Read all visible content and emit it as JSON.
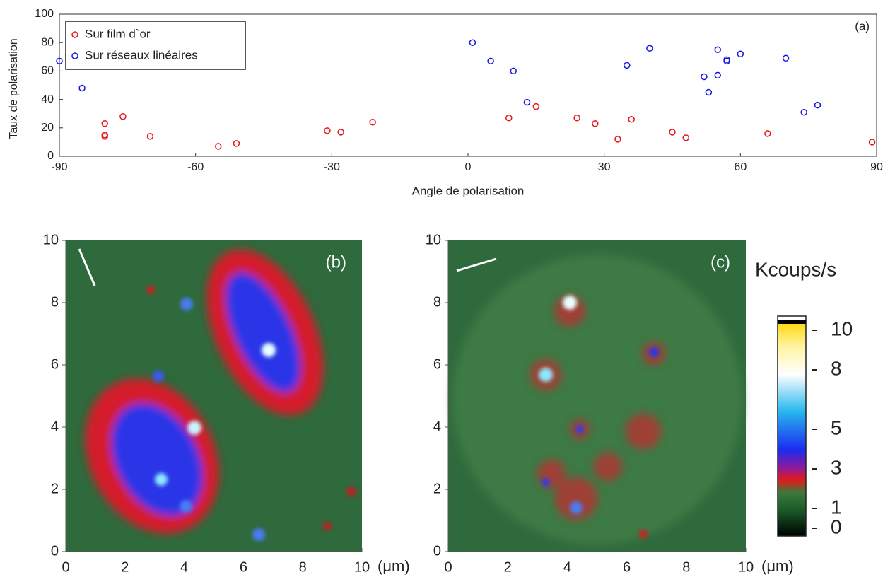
{
  "chart_data": [
    {
      "type": "scatter",
      "annotation": "(a)",
      "xlabel": "Angle de polarisation",
      "ylabel": "Taux de polarisation",
      "xlim": [
        -90,
        90
      ],
      "xticks": [
        -90,
        -60,
        -30,
        0,
        30,
        60,
        90
      ],
      "ylim": [
        0,
        100
      ],
      "yticks": [
        0,
        20,
        40,
        60,
        80,
        100
      ],
      "legend": "upper left",
      "series": [
        {
          "name": "Sur film d`or",
          "color": "#e8141a",
          "x": [
            -80,
            -80,
            -80,
            -76,
            -70,
            -55,
            -51,
            -31,
            -28,
            -21,
            9,
            15,
            24,
            28,
            33,
            36,
            45,
            48,
            66,
            89
          ],
          "values": [
            23,
            15,
            14,
            28,
            14,
            7,
            9,
            18,
            17,
            24,
            27,
            35,
            27,
            23,
            12,
            26,
            17,
            13,
            16,
            10
          ]
        },
        {
          "name": "Sur réseaux linéaires",
          "color": "#1414e0",
          "x": [
            -90,
            -85,
            1,
            5,
            10,
            13,
            35,
            40,
            52,
            53,
            55,
            55,
            57,
            57,
            60,
            70,
            74,
            77
          ],
          "values": [
            67,
            48,
            80,
            67,
            60,
            38,
            64,
            76,
            56,
            45,
            57,
            75,
            68,
            67,
            72,
            69,
            31,
            36
          ]
        }
      ]
    },
    {
      "type": "heatmap",
      "annotation": "(b)",
      "xlabel": "(μm)",
      "xlim": [
        0,
        10
      ],
      "xticks": [
        0,
        2,
        4,
        6,
        8,
        10
      ],
      "ylim": [
        0,
        10
      ],
      "yticks": [
        0,
        2,
        4,
        6,
        8,
        10
      ]
    },
    {
      "type": "heatmap",
      "annotation": "(c)",
      "xlabel": "(μm)",
      "xlim": [
        0,
        10
      ],
      "xticks": [
        0,
        2,
        4,
        6,
        8,
        10
      ],
      "ylim": [
        0,
        10
      ],
      "yticks": [
        0,
        2,
        4,
        6,
        8,
        10
      ]
    },
    {
      "type": "colorbar",
      "title": "Kcoups/s",
      "ylim": [
        0,
        10
      ],
      "yticks": [
        0,
        1,
        3,
        5,
        8,
        10
      ]
    }
  ]
}
